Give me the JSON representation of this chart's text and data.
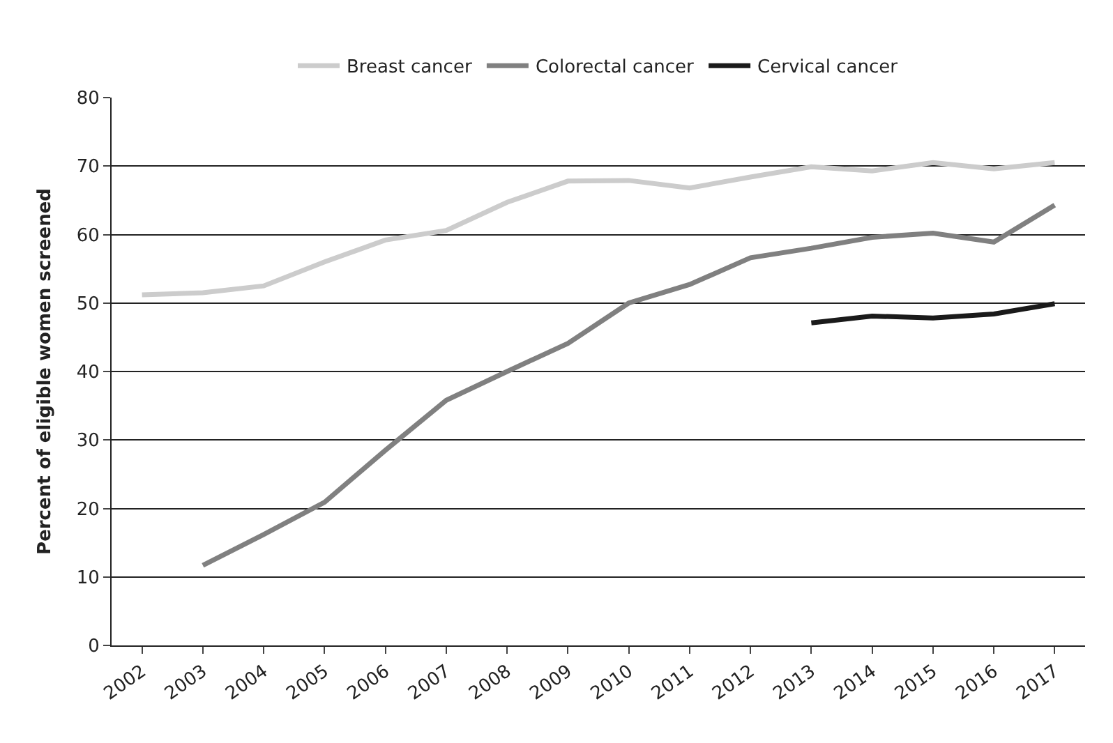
{
  "chart_data": {
    "type": "line",
    "ylabel": "Percent of eligible women screened",
    "categories": [
      "2002",
      "2003",
      "2004",
      "2005",
      "2006",
      "2007",
      "2008",
      "2009",
      "2010",
      "2011",
      "2012",
      "2013",
      "2014",
      "2015",
      "2016",
      "2017"
    ],
    "series": [
      {
        "name": "Breast cancer",
        "color": "#cccccc",
        "values": [
          51.2,
          51.5,
          52.5,
          56,
          59.2,
          60.6,
          64.7,
          67.8,
          67.9,
          66.8,
          68.4,
          69.9,
          69.3,
          70.5,
          69.6,
          70.5
        ]
      },
      {
        "name": "Colorectal cancer",
        "color": "#808080",
        "values": [
          null,
          11.7,
          16.2,
          20.9,
          28.5,
          35.8,
          40,
          44.1,
          50,
          52.7,
          56.6,
          58,
          59.6,
          60.2,
          58.9,
          64.3
        ]
      },
      {
        "name": "Cervical cancer",
        "color": "#1a1a1a",
        "values": [
          null,
          null,
          null,
          null,
          null,
          null,
          null,
          null,
          null,
          null,
          null,
          47.1,
          48.1,
          47.8,
          48.4,
          49.9
        ]
      }
    ],
    "ylim": [
      0,
      80
    ],
    "yticks": [
      0,
      10,
      20,
      30,
      40,
      50,
      60,
      70,
      80
    ],
    "grid": "y",
    "legend": "top",
    "marker": "none",
    "line_style": "solid"
  }
}
